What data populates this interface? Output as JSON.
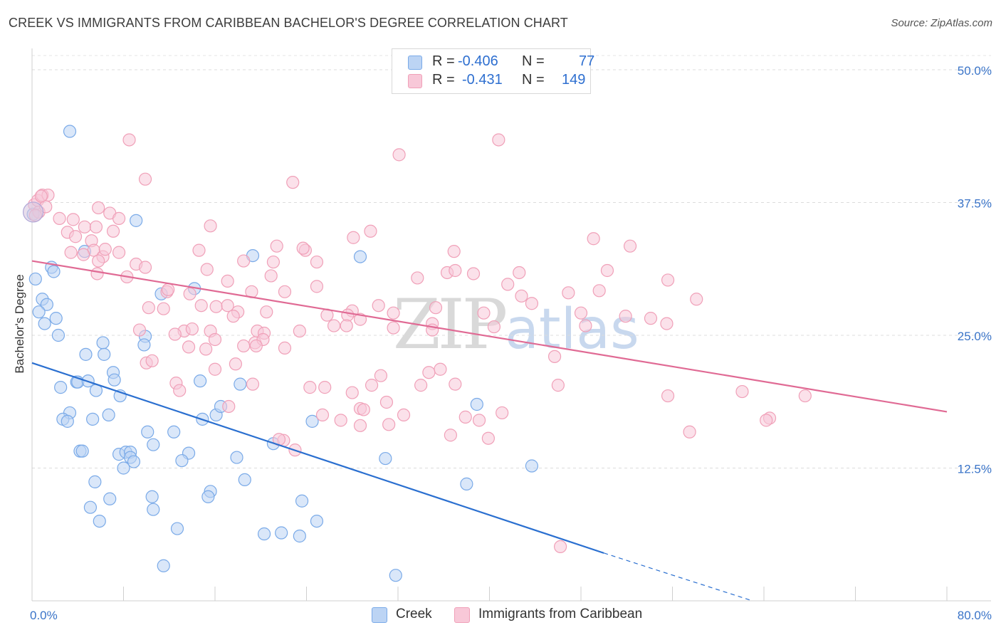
{
  "header": {
    "title": "CREEK VS IMMIGRANTS FROM CARIBBEAN BACHELOR'S DEGREE CORRELATION CHART",
    "source": "Source: ZipAtlas.com"
  },
  "watermark": {
    "zip": "ZIP",
    "atlas": "atlas"
  },
  "legend_top": {
    "rows": [
      {
        "r_label": "R =",
        "r_value": "-0.406",
        "n_label": "N =",
        "n_value": "77",
        "color": "#7aaae8",
        "fill": "#bcd4f4"
      },
      {
        "r_label": "R =",
        "r_value": "-0.431",
        "n_label": "N =",
        "n_value": "149",
        "color": "#f0a0b8",
        "fill": "#f8c8d8"
      }
    ]
  },
  "legend_bottom": {
    "items": [
      {
        "label": "Creek",
        "fill": "#bcd4f4",
        "border": "#7aaae8"
      },
      {
        "label": "Immigrants from Caribbean",
        "fill": "#f8c8d8",
        "border": "#f0a0b8"
      }
    ]
  },
  "chart_data": {
    "type": "scatter",
    "ylabel": "Bachelor's Degree",
    "xlabel": "",
    "xlim": [
      0,
      80
    ],
    "ylim": [
      0,
      50
    ],
    "x_tick_labels": [
      {
        "value": 0,
        "label": "0.0%"
      },
      {
        "value": 80,
        "label": "80.0%"
      }
    ],
    "y_tick_labels": [
      {
        "value": 12.5,
        "label": "12.5%"
      },
      {
        "value": 25,
        "label": "25.0%"
      },
      {
        "value": 37.5,
        "label": "37.5%"
      },
      {
        "value": 50,
        "label": "50.0%"
      }
    ],
    "grid": "horizontal dashed",
    "series": [
      {
        "name": "Creek",
        "color": "#7aaae8",
        "fill": "#bcd4f4",
        "line_color": "#2a6fd0",
        "trend": {
          "x1": 0,
          "y1": 22.4,
          "x2": 50,
          "y2": 4.5,
          "dash_to_x": 63,
          "dash_to_y": 0
        },
        "points": [
          [
            3.3,
            44.2
          ],
          [
            9.1,
            35.8
          ],
          [
            0.3,
            30.3
          ],
          [
            1.7,
            31.4
          ],
          [
            1.9,
            31.0
          ],
          [
            0.9,
            28.4
          ],
          [
            1.3,
            27.9
          ],
          [
            0.6,
            27.2
          ],
          [
            1.1,
            26.1
          ],
          [
            2.1,
            26.6
          ],
          [
            2.3,
            25.0
          ],
          [
            4.6,
            32.9
          ],
          [
            19.3,
            32.5
          ],
          [
            28.7,
            32.4
          ],
          [
            14.2,
            29.4
          ],
          [
            11.3,
            28.9
          ],
          [
            6.2,
            24.3
          ],
          [
            6.3,
            23.2
          ],
          [
            9.9,
            24.9
          ],
          [
            9.8,
            24.1
          ],
          [
            4.7,
            23.2
          ],
          [
            7.1,
            21.5
          ],
          [
            7.2,
            20.8
          ],
          [
            3.9,
            20.6
          ],
          [
            4.0,
            20.6
          ],
          [
            4.9,
            20.7
          ],
          [
            14.7,
            20.7
          ],
          [
            18.2,
            20.4
          ],
          [
            2.5,
            20.1
          ],
          [
            5.6,
            19.8
          ],
          [
            7.7,
            19.3
          ],
          [
            38.9,
            18.5
          ],
          [
            16.1,
            17.5
          ],
          [
            16.5,
            18.3
          ],
          [
            3.3,
            17.7
          ],
          [
            2.7,
            17.1
          ],
          [
            3.1,
            16.9
          ],
          [
            5.3,
            17.1
          ],
          [
            6.7,
            17.5
          ],
          [
            14.9,
            17.1
          ],
          [
            24.5,
            16.9
          ],
          [
            10.1,
            15.9
          ],
          [
            12.4,
            15.9
          ],
          [
            21.1,
            14.8
          ],
          [
            10.6,
            14.7
          ],
          [
            4.2,
            14.1
          ],
          [
            4.4,
            14.1
          ],
          [
            7.6,
            13.8
          ],
          [
            8.2,
            14.0
          ],
          [
            8.6,
            14.0
          ],
          [
            8.6,
            13.5
          ],
          [
            8.9,
            13.1
          ],
          [
            13.7,
            13.9
          ],
          [
            17.9,
            13.5
          ],
          [
            8.0,
            12.5
          ],
          [
            13.1,
            13.2
          ],
          [
            43.7,
            12.7
          ],
          [
            30.9,
            13.4
          ],
          [
            5.5,
            11.2
          ],
          [
            18.6,
            11.4
          ],
          [
            15.6,
            10.3
          ],
          [
            15.4,
            9.8
          ],
          [
            10.5,
            9.8
          ],
          [
            6.8,
            9.6
          ],
          [
            23.6,
            9.4
          ],
          [
            5.1,
            8.8
          ],
          [
            10.6,
            8.6
          ],
          [
            5.9,
            7.5
          ],
          [
            12.7,
            6.8
          ],
          [
            20.3,
            6.3
          ],
          [
            21.8,
            6.4
          ],
          [
            23.4,
            6.1
          ],
          [
            24.9,
            7.5
          ],
          [
            11.5,
            3.3
          ],
          [
            31.8,
            2.4
          ],
          [
            38.0,
            11.0
          ],
          [
            0.1,
            36.4
          ]
        ]
      },
      {
        "name": "Immigrants from Caribbean",
        "color": "#f0a0b8",
        "fill": "#f8c8d8",
        "line_color": "#e06a94",
        "trend": {
          "x1": 0,
          "y1": 32.0,
          "x2": 80,
          "y2": 17.8
        },
        "points": [
          [
            0.2,
            37.3
          ],
          [
            0.5,
            37.7
          ],
          [
            0.9,
            38.2
          ],
          [
            1.4,
            38.2
          ],
          [
            0.6,
            36.6
          ],
          [
            1.2,
            37.1
          ],
          [
            0.3,
            36.3
          ],
          [
            0.8,
            38.1
          ],
          [
            2.4,
            36.0
          ],
          [
            3.6,
            35.9
          ],
          [
            4.6,
            35.2
          ],
          [
            5.6,
            35.2
          ],
          [
            3.1,
            34.7
          ],
          [
            3.8,
            34.3
          ],
          [
            5.2,
            33.9
          ],
          [
            5.4,
            33.0
          ],
          [
            3.4,
            32.8
          ],
          [
            4.5,
            32.6
          ],
          [
            6.2,
            32.4
          ],
          [
            6.4,
            33.1
          ],
          [
            7.6,
            32.8
          ],
          [
            5.8,
            32.0
          ],
          [
            6.8,
            36.5
          ],
          [
            7.6,
            36.0
          ],
          [
            5.8,
            37.0
          ],
          [
            8.5,
            43.4
          ],
          [
            9.9,
            39.7
          ],
          [
            22.8,
            39.4
          ],
          [
            32.1,
            42.0
          ],
          [
            40.8,
            43.4
          ],
          [
            7.1,
            34.8
          ],
          [
            15.6,
            35.3
          ],
          [
            28.1,
            34.2
          ],
          [
            29.6,
            34.8
          ],
          [
            14.6,
            33.0
          ],
          [
            21.4,
            33.4
          ],
          [
            23.9,
            33.0
          ],
          [
            23.7,
            33.2
          ],
          [
            36.9,
            32.9
          ],
          [
            49.1,
            34.1
          ],
          [
            52.3,
            33.4
          ],
          [
            18.5,
            32.0
          ],
          [
            21.1,
            31.9
          ],
          [
            24.9,
            31.9
          ],
          [
            15.3,
            31.2
          ],
          [
            9.1,
            31.7
          ],
          [
            9.9,
            31.4
          ],
          [
            8.3,
            30.5
          ],
          [
            5.7,
            30.8
          ],
          [
            20.9,
            30.6
          ],
          [
            17.1,
            30.1
          ],
          [
            33.7,
            30.4
          ],
          [
            36.3,
            30.9
          ],
          [
            37.0,
            31.1
          ],
          [
            38.6,
            30.8
          ],
          [
            42.6,
            30.9
          ],
          [
            50.3,
            31.1
          ],
          [
            55.6,
            30.2
          ],
          [
            24.9,
            29.6
          ],
          [
            41.6,
            29.8
          ],
          [
            19.2,
            29.1
          ],
          [
            11.8,
            29.1
          ],
          [
            11.9,
            29.3
          ],
          [
            13.8,
            28.9
          ],
          [
            22.1,
            29.1
          ],
          [
            46.9,
            29.0
          ],
          [
            49.6,
            29.2
          ],
          [
            42.8,
            28.7
          ],
          [
            43.7,
            28.0
          ],
          [
            58.1,
            28.4
          ],
          [
            10.2,
            27.6
          ],
          [
            11.5,
            27.5
          ],
          [
            14.8,
            27.8
          ],
          [
            16.1,
            27.7
          ],
          [
            17.1,
            27.8
          ],
          [
            18.0,
            27.2
          ],
          [
            20.5,
            27.2
          ],
          [
            25.8,
            26.9
          ],
          [
            28.0,
            27.3
          ],
          [
            30.3,
            27.8
          ],
          [
            31.6,
            27.1
          ],
          [
            35.3,
            27.6
          ],
          [
            39.5,
            27.1
          ],
          [
            48.0,
            27.1
          ],
          [
            51.9,
            26.8
          ],
          [
            54.1,
            26.6
          ],
          [
            17.6,
            26.8
          ],
          [
            27.6,
            26.9
          ],
          [
            28.7,
            26.5
          ],
          [
            35.0,
            26.1
          ],
          [
            40.4,
            25.8
          ],
          [
            48.4,
            25.9
          ],
          [
            55.5,
            26.1
          ],
          [
            9.4,
            25.5
          ],
          [
            13.3,
            25.4
          ],
          [
            14.0,
            25.6
          ],
          [
            15.6,
            25.4
          ],
          [
            19.7,
            25.4
          ],
          [
            20.3,
            25.2
          ],
          [
            23.4,
            25.4
          ],
          [
            26.4,
            25.9
          ],
          [
            27.5,
            25.9
          ],
          [
            31.6,
            25.7
          ],
          [
            35.0,
            25.5
          ],
          [
            12.5,
            25.1
          ],
          [
            16.0,
            24.6
          ],
          [
            19.5,
            24.3
          ],
          [
            20.2,
            24.6
          ],
          [
            18.5,
            24.0
          ],
          [
            19.6,
            24.0
          ],
          [
            13.7,
            23.9
          ],
          [
            15.2,
            23.7
          ],
          [
            22.1,
            23.8
          ],
          [
            45.7,
            23.0
          ],
          [
            10.0,
            22.4
          ],
          [
            10.5,
            22.6
          ],
          [
            17.8,
            22.3
          ],
          [
            16.0,
            21.8
          ],
          [
            35.7,
            21.8
          ],
          [
            34.7,
            21.5
          ],
          [
            30.5,
            21.2
          ],
          [
            12.6,
            20.5
          ],
          [
            19.3,
            20.4
          ],
          [
            24.3,
            20.1
          ],
          [
            25.6,
            20.1
          ],
          [
            29.7,
            20.3
          ],
          [
            34.0,
            20.3
          ],
          [
            37.0,
            20.4
          ],
          [
            46.0,
            20.3
          ],
          [
            12.9,
            19.8
          ],
          [
            28.0,
            19.6
          ],
          [
            55.6,
            19.3
          ],
          [
            62.1,
            19.7
          ],
          [
            67.6,
            19.3
          ],
          [
            31.0,
            18.7
          ],
          [
            28.7,
            18.1
          ],
          [
            29.0,
            18.0
          ],
          [
            17.2,
            18.3
          ],
          [
            41.1,
            17.7
          ],
          [
            25.4,
            17.5
          ],
          [
            32.5,
            17.5
          ],
          [
            37.9,
            17.3
          ],
          [
            39.1,
            17.0
          ],
          [
            27.0,
            17.0
          ],
          [
            28.7,
            16.5
          ],
          [
            31.2,
            16.6
          ],
          [
            64.5,
            17.2
          ],
          [
            64.2,
            17.0
          ],
          [
            57.5,
            15.9
          ],
          [
            39.9,
            15.3
          ],
          [
            22.0,
            15.1
          ],
          [
            21.6,
            15.2
          ],
          [
            36.6,
            15.6
          ],
          [
            23.0,
            14.2
          ],
          [
            46.2,
            5.1
          ]
        ]
      }
    ]
  }
}
